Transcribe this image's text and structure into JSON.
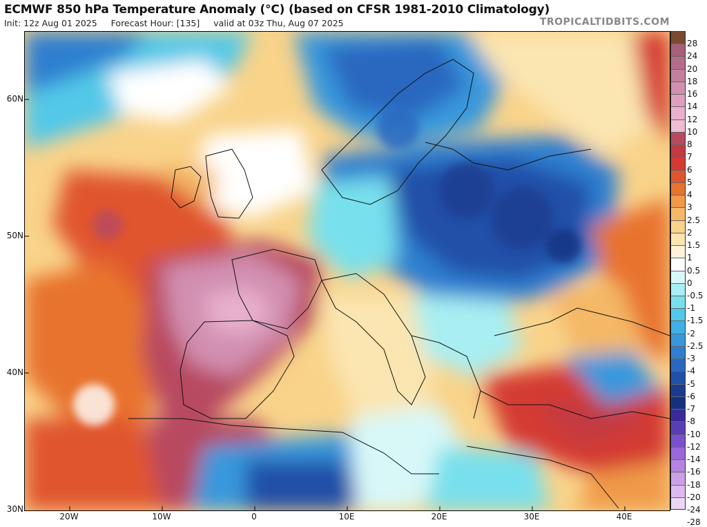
{
  "header": {
    "title": "ECMWF 850 hPa Temperature Anomaly (°C) (based on CFSR 1981-2010 Climatology)",
    "init": "Init: 12z Aug 01 2025",
    "forecast_hour": "Forecast Hour: [135]",
    "valid": "valid at 03z Thu, Aug 07 2025",
    "brand": "TROPICALTIDBITS.COM"
  },
  "map": {
    "lat_labels": [
      "60N",
      "50N",
      "40N",
      "30N"
    ],
    "lon_labels": [
      "20W",
      "10W",
      "0",
      "10E",
      "20E",
      "30E",
      "40E"
    ]
  },
  "colorbar": {
    "labels": [
      "28",
      "24",
      "20",
      "18",
      "16",
      "14",
      "12",
      "10",
      "8",
      "7",
      "6",
      "5",
      "4",
      "3",
      "2.5",
      "2",
      "1.5",
      "1",
      "0.5",
      "0",
      "-0.5",
      "-1",
      "-1.5",
      "-2",
      "-2.5",
      "-3",
      "-4",
      "-5",
      "-6",
      "-7",
      "-8",
      "-10",
      "-12",
      "-14",
      "-16",
      "-18",
      "-20",
      "-24",
      "-28"
    ],
    "colors": [
      "#7a4a32",
      "#a85f78",
      "#b56c8c",
      "#c47f9e",
      "#d28fb0",
      "#de9fbe",
      "#e8b0cc",
      "#efbcd4",
      "#b84a60",
      "#c33a43",
      "#d43a33",
      "#e0552e",
      "#e8732f",
      "#f09a48",
      "#f4b866",
      "#f9d38a",
      "#fbe5b0",
      "#fef3d6",
      "#ffffff",
      "#d8f8f8",
      "#a8eef2",
      "#78e0ec",
      "#52c8e8",
      "#3fb0e6",
      "#3898dc",
      "#2f7fd0",
      "#2968c0",
      "#2150a8",
      "#1a3c90",
      "#163080",
      "#3a2a9a",
      "#5a3cb8",
      "#7a50cc",
      "#9a68d8",
      "#b584e0",
      "#cca0e8",
      "#dcbaf0",
      "#ecd6f6"
    ]
  }
}
